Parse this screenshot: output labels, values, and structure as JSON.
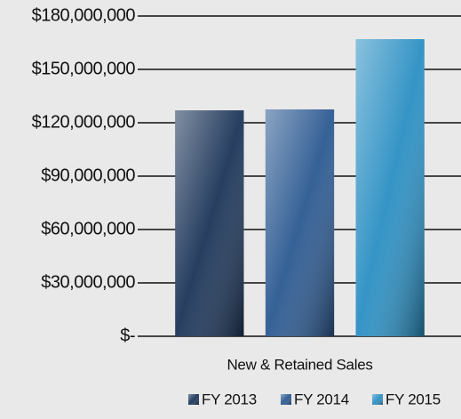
{
  "chart_data": {
    "type": "bar",
    "categories": [
      "New & Retained Sales"
    ],
    "series": [
      {
        "name": "FY 2013",
        "color": "#1b3458",
        "values": [
          127000000
        ]
      },
      {
        "name": "FY 2014",
        "color": "#2b5991",
        "values": [
          127500000
        ]
      },
      {
        "name": "FY 2015",
        "color": "#2a8fc3",
        "values": [
          167000000
        ]
      }
    ],
    "ylim": [
      0,
      180000000
    ],
    "yticks": [
      {
        "value": 0,
        "label": "$-"
      },
      {
        "value": 30000000,
        "label": "$30,000,000"
      },
      {
        "value": 60000000,
        "label": "$60,000,000"
      },
      {
        "value": 90000000,
        "label": "$90,000,000"
      },
      {
        "value": 120000000,
        "label": "$120,000,000"
      },
      {
        "value": 150000000,
        "label": "$150,000,000"
      },
      {
        "value": 180000000,
        "label": "$180,000,000"
      }
    ],
    "grid": true,
    "legend": "bottom"
  }
}
